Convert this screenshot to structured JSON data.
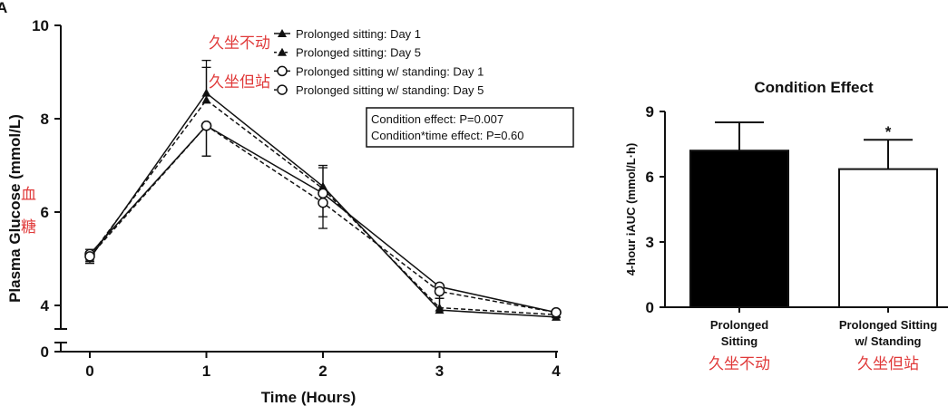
{
  "panel_label": "A",
  "colors": {
    "ink": "#111111",
    "annotation_red": "#e03a3a"
  },
  "chart_data": [
    {
      "type": "line",
      "xlabel": "Time (Hours)",
      "ylabel": "Plasma Glucose (mmol/L)",
      "ylabel_cn": [
        "血",
        "糖"
      ],
      "x": [
        0,
        1,
        2,
        3,
        4
      ],
      "xticks": [
        "0",
        "1",
        "2",
        "3",
        "4"
      ],
      "yticks": [
        "10",
        "8",
        "6",
        "4",
        "0"
      ],
      "ylim": [
        0,
        10
      ],
      "y_axis_break": [
        3.4,
        3.7
      ],
      "legend_position": "top-right",
      "legend_cn": [
        "久坐不动",
        "久坐但站"
      ],
      "series": [
        {
          "name": "Prolonged sitting: Day 1",
          "marker": "triangle-filled",
          "dash": false,
          "values": [
            5.0,
            8.55,
            6.55,
            3.9,
            3.75
          ],
          "err": [
            0.15,
            0.7,
            0.45,
            0.25,
            0.1
          ]
        },
        {
          "name": "Prolonged sitting: Day 5",
          "marker": "triangle-filled",
          "dash": true,
          "values": [
            5.05,
            8.4,
            6.5,
            3.95,
            3.8
          ],
          "err": [
            0.15,
            0.7,
            0.45,
            0.2,
            0.1
          ]
        },
        {
          "name": "Prolonged sitting w/ standing: Day 1",
          "marker": "circle-open",
          "dash": false,
          "values": [
            5.1,
            7.85,
            6.4,
            4.4,
            3.85
          ],
          "err": [
            0.15,
            0.65,
            0.5,
            0.15,
            0.1
          ]
        },
        {
          "name": "Prolonged sitting w/ standing: Day 5",
          "marker": "circle-open",
          "dash": true,
          "values": [
            5.05,
            7.85,
            6.2,
            4.3,
            3.85
          ],
          "err": [
            0.15,
            0.65,
            0.55,
            0.15,
            0.1
          ]
        }
      ],
      "annotations": [
        "Condition effect: P=0.007",
        "Condition*time effect: P=0.60"
      ]
    },
    {
      "type": "bar",
      "title": "Condition Effect",
      "ylabel": "4-hour iAUC (mmol/L·h)",
      "categories": [
        [
          "Prolonged",
          "Sitting"
        ],
        [
          "Prolonged Sitting",
          "w/ Standing"
        ]
      ],
      "categories_cn": [
        "久坐不动",
        "久坐但站"
      ],
      "values": [
        7.2,
        6.35
      ],
      "err": [
        1.3,
        1.35
      ],
      "fills": [
        "#000000",
        "#ffffff"
      ],
      "significance": [
        "",
        "*"
      ],
      "yticks": [
        "0",
        "3",
        "6",
        "9"
      ],
      "ylim": [
        0,
        9
      ]
    }
  ]
}
